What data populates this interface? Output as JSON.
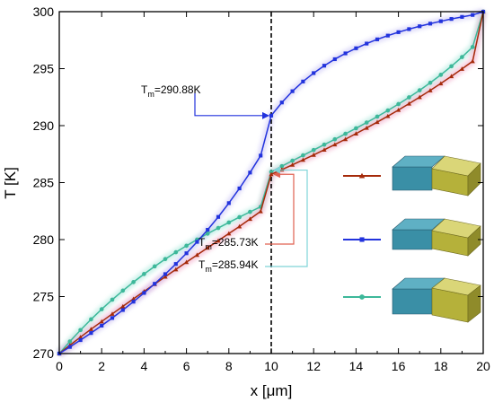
{
  "chart_data": {
    "type": "line",
    "xlabel": "x [μm]",
    "ylabel": "T [K]",
    "xlim": [
      0,
      20
    ],
    "ylim": [
      270,
      300
    ],
    "xticks": [
      0,
      2,
      4,
      6,
      8,
      10,
      12,
      14,
      16,
      18,
      20
    ],
    "yticks": [
      270,
      275,
      280,
      285,
      290,
      295,
      300
    ],
    "grid": false,
    "vline_x": 10,
    "series": [
      {
        "color": "#a52a0a",
        "marker": "triangle",
        "glyph": "narrowing-block-right",
        "x": [
          0,
          0.5,
          1,
          1.5,
          2,
          2.5,
          3,
          3.5,
          4,
          4.5,
          5,
          5.5,
          6,
          6.5,
          7,
          7.5,
          8,
          8.5,
          9,
          9.5,
          10,
          10.5,
          11,
          11.5,
          12,
          12.5,
          13,
          13.5,
          14,
          14.5,
          15,
          15.5,
          16,
          16.5,
          17,
          17.5,
          18,
          18.5,
          19,
          19.5,
          20
        ],
        "values": [
          270.0,
          270.73,
          271.44,
          272.14,
          272.81,
          273.48,
          274.14,
          274.8,
          275.45,
          276.09,
          276.74,
          277.38,
          278.02,
          278.65,
          279.28,
          279.9,
          280.53,
          281.15,
          281.81,
          282.48,
          285.73,
          286.14,
          286.56,
          286.99,
          287.43,
          287.88,
          288.34,
          288.81,
          289.3,
          289.8,
          290.31,
          290.83,
          291.37,
          291.93,
          292.5,
          293.09,
          293.7,
          294.33,
          294.98,
          295.65,
          300.0
        ]
      },
      {
        "color": "#2233dd",
        "marker": "square",
        "glyph": "funnel-block",
        "x": [
          0,
          0.5,
          1,
          1.5,
          2,
          2.5,
          3,
          3.5,
          4,
          4.5,
          5,
          5.5,
          6,
          6.5,
          7,
          7.5,
          8,
          8.5,
          9,
          9.5,
          10,
          10.5,
          11,
          11.5,
          12,
          12.5,
          13,
          13.5,
          14,
          14.5,
          15,
          15.5,
          16,
          16.5,
          17,
          17.5,
          18,
          18.5,
          19,
          19.5,
          20
        ],
        "values": [
          270.0,
          270.58,
          271.18,
          271.8,
          272.45,
          273.12,
          273.82,
          274.55,
          275.32,
          276.12,
          276.97,
          277.86,
          278.8,
          279.8,
          280.86,
          281.99,
          283.2,
          284.49,
          285.88,
          287.37,
          290.88,
          292.03,
          293.02,
          293.87,
          294.61,
          295.26,
          295.83,
          296.34,
          296.79,
          297.2,
          297.57,
          297.9,
          298.2,
          298.47,
          298.72,
          298.95,
          299.16,
          299.36,
          299.54,
          299.71,
          300.0
        ]
      },
      {
        "color": "#3db89a",
        "marker": "circle",
        "glyph": "widening-block-right",
        "x": [
          0,
          0.5,
          1,
          1.5,
          2,
          2.5,
          3,
          3.5,
          4,
          4.5,
          5,
          5.5,
          6,
          6.5,
          7,
          7.5,
          8,
          8.5,
          9,
          9.5,
          10,
          10.5,
          11,
          11.5,
          12,
          12.5,
          13,
          13.5,
          14,
          14.5,
          15,
          15.5,
          16,
          16.5,
          17,
          17.5,
          18,
          18.5,
          19,
          19.5,
          20
        ],
        "values": [
          270.0,
          271.06,
          272.06,
          273.0,
          273.89,
          274.73,
          275.52,
          276.27,
          276.98,
          277.65,
          278.29,
          278.89,
          279.46,
          280.0,
          280.52,
          281.02,
          281.5,
          281.97,
          282.43,
          282.88,
          285.94,
          286.44,
          286.92,
          287.39,
          287.86,
          288.33,
          288.8,
          289.28,
          289.77,
          290.27,
          290.79,
          291.33,
          291.89,
          292.48,
          293.1,
          293.76,
          294.46,
          295.21,
          296.02,
          296.9,
          300.0
        ]
      }
    ],
    "annotations": [
      {
        "base": "T",
        "sub": "m",
        "text": "=290.88K",
        "x": 10,
        "y": 290.88,
        "color": "#2233dd"
      },
      {
        "base": "T",
        "sub": "m",
        "text": "=285.73K",
        "x": 10,
        "y": 285.73,
        "color": "#e06050"
      },
      {
        "base": "T",
        "sub": "m",
        "text": "=285.94K",
        "x": 10,
        "y": 285.94,
        "color": "#7fd4d8"
      }
    ]
  }
}
